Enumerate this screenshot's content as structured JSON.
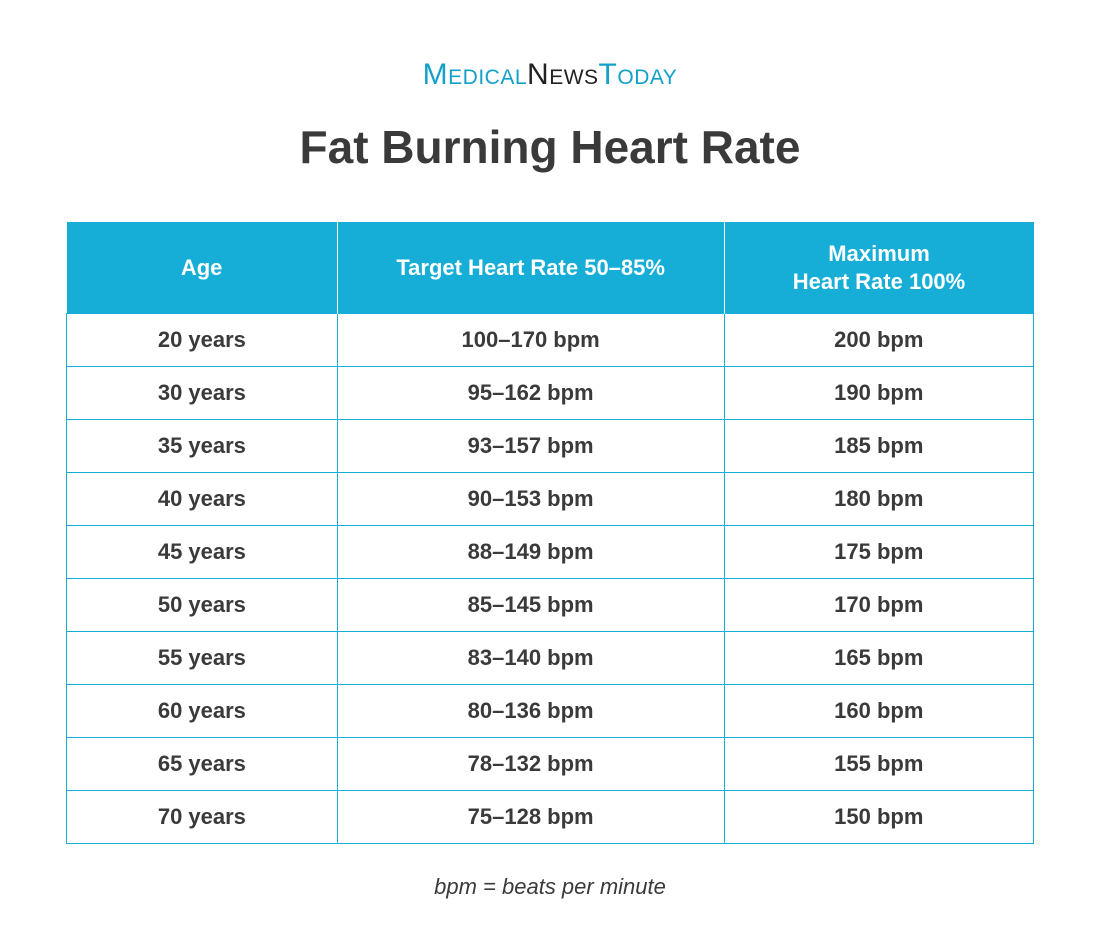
{
  "brand": {
    "word1": "Medical",
    "word2": "News",
    "word3": "Today"
  },
  "title": "Fat Burning Heart Rate",
  "table": {
    "type": "table",
    "header_bg_color": "#16aed6",
    "header_text_color": "#ffffff",
    "header_fontsize_pt": 16,
    "cell_border_color": "#16aed6",
    "cell_text_color": "#3a3a3a",
    "cell_bg_color": "#ffffff",
    "cell_fontsize_pt": 16,
    "cell_fontweight": 600,
    "column_widths_pct": [
      28,
      40,
      32
    ],
    "columns": [
      "Age",
      "Target Heart Rate 50–85%",
      "Maximum\nHeart Rate 100%"
    ],
    "rows": [
      [
        "20 years",
        "100–170 bpm",
        "200 bpm"
      ],
      [
        "30 years",
        "95–162 bpm",
        "190 bpm"
      ],
      [
        "35 years",
        "93–157 bpm",
        "185 bpm"
      ],
      [
        "40 years",
        "90–153 bpm",
        "180 bpm"
      ],
      [
        "45 years",
        "88–149 bpm",
        "175 bpm"
      ],
      [
        "50 years",
        "85–145 bpm",
        "170 bpm"
      ],
      [
        "55 years",
        "83–140 bpm",
        "165 bpm"
      ],
      [
        "60 years",
        "80–136 bpm",
        "160 bpm"
      ],
      [
        "65 years",
        "78–132 bpm",
        "155 bpm"
      ],
      [
        "70 years",
        "75–128 bpm",
        "150 bpm"
      ]
    ]
  },
  "footnote": "bpm = beats per minute",
  "styling": {
    "page_bg": "#ffffff",
    "brand_accent_color": "#13a0c9",
    "brand_dark_color": "#222222",
    "title_color": "#3a3a3a",
    "title_fontsize_pt": 35,
    "title_fontweight": 700,
    "footnote_fontstyle": "italic",
    "footnote_fontsize_pt": 16
  }
}
